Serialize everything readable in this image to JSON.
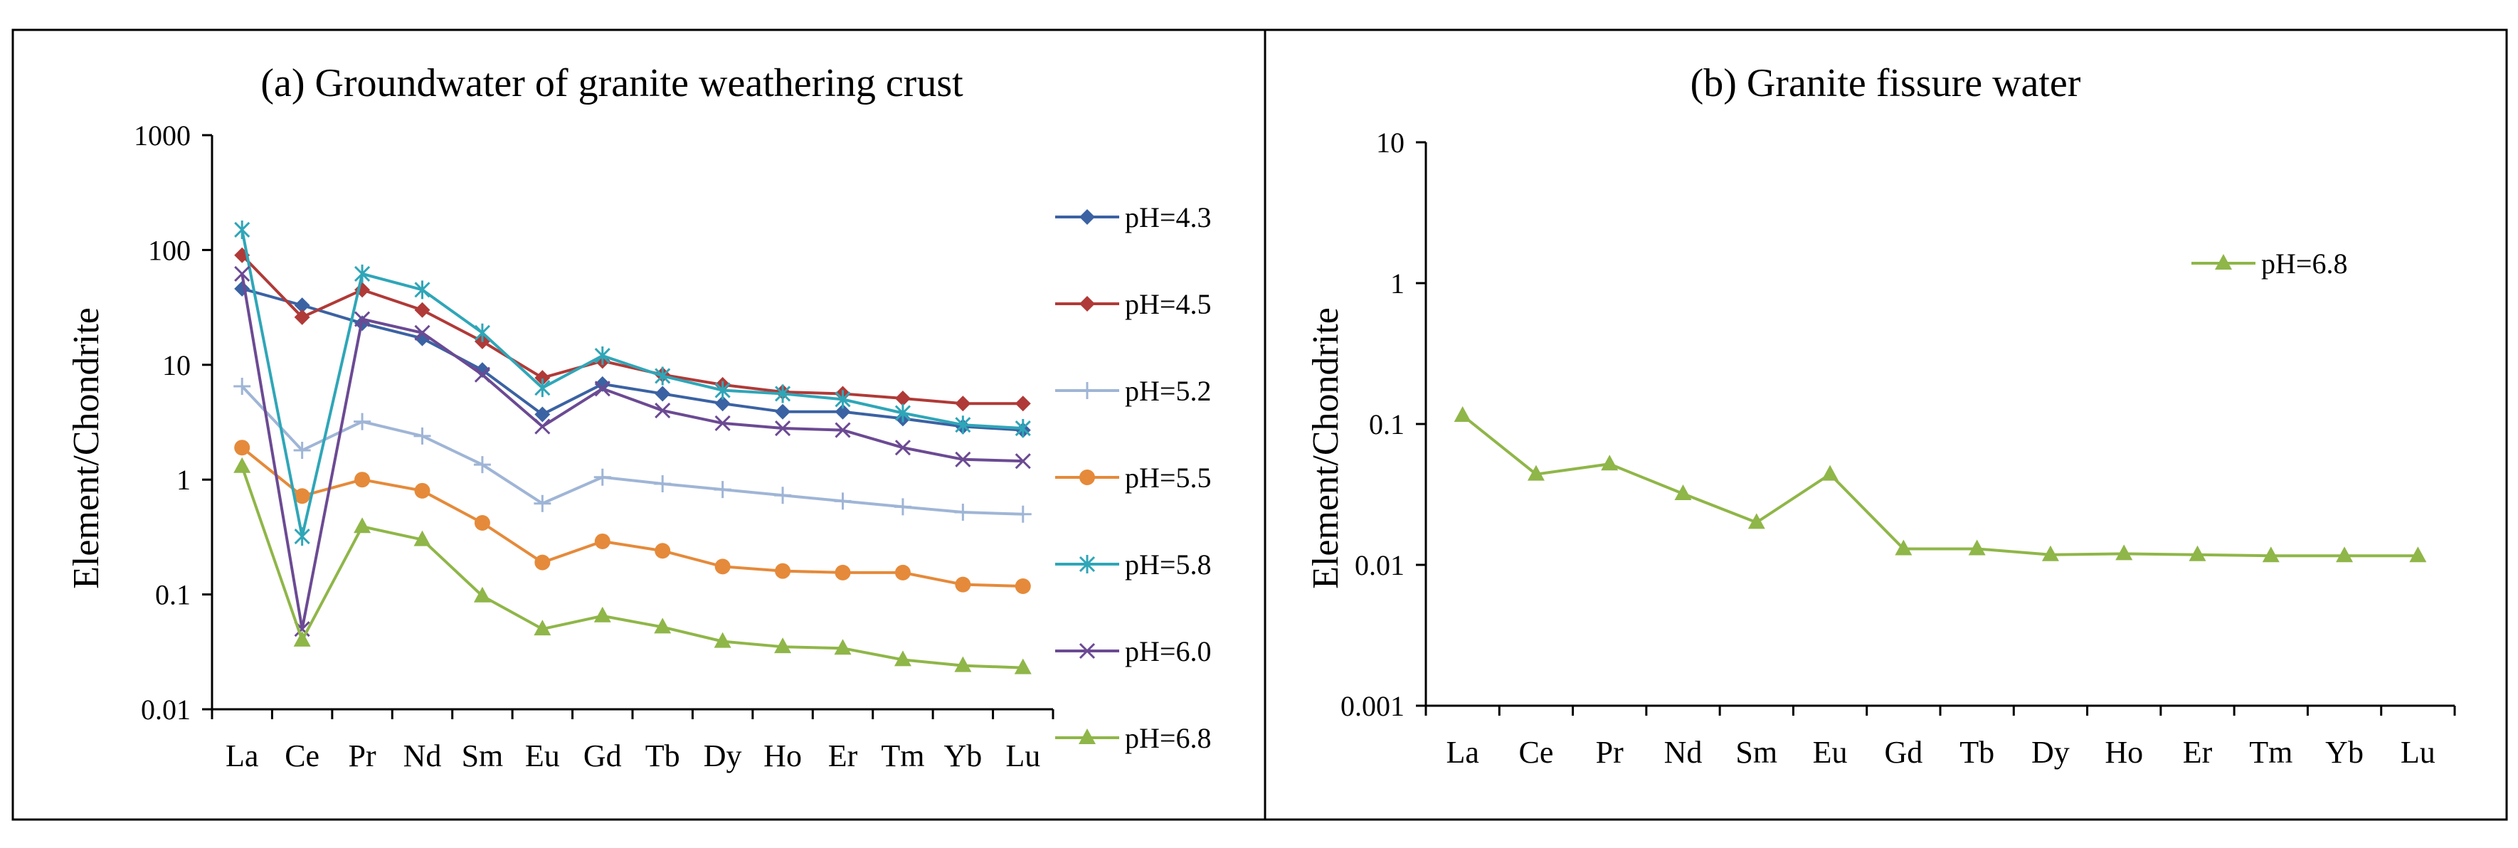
{
  "chart_data": [
    {
      "type": "line",
      "title": "(a) Groundwater of granite weathering crust",
      "xlabel": "",
      "ylabel": "Element/Chondrite",
      "yscale": "log",
      "ylim": [
        0.01,
        1000
      ],
      "yticks": [
        "0.01",
        "0.1",
        "1",
        "10",
        "100",
        "1000"
      ],
      "categories": [
        "La",
        "Ce",
        "Pr",
        "Nd",
        "Sm",
        "Eu",
        "Gd",
        "Tb",
        "Dy",
        "Ho",
        "Er",
        "Tm",
        "Yb",
        "Lu"
      ],
      "grid": false,
      "legend": "right",
      "series": [
        {
          "name": "pH=4.3",
          "color": "#3b62a3",
          "marker": "diamond",
          "values": [
            46,
            33,
            23,
            17,
            9,
            3.7,
            6.8,
            5.6,
            4.6,
            3.9,
            3.9,
            3.4,
            2.9,
            2.7
          ]
        },
        {
          "name": "pH=4.5",
          "color": "#b03a37",
          "marker": "diamond",
          "values": [
            90,
            26,
            45,
            30,
            16,
            7.7,
            10.8,
            8.2,
            6.7,
            5.8,
            5.6,
            5.1,
            4.6,
            4.6
          ]
        },
        {
          "name": "pH=5.2",
          "color": "#9fb5d6",
          "marker": "plus",
          "values": [
            6.5,
            1.8,
            3.2,
            2.4,
            1.35,
            0.62,
            1.05,
            0.92,
            0.82,
            0.73,
            0.65,
            0.58,
            0.52,
            0.5
          ]
        },
        {
          "name": "pH=5.5",
          "color": "#e58a3a",
          "marker": "circle",
          "values": [
            1.9,
            0.72,
            1.0,
            0.8,
            0.42,
            0.19,
            0.29,
            0.24,
            0.175,
            0.16,
            0.155,
            0.155,
            0.122,
            0.118
          ]
        },
        {
          "name": "pH=5.8",
          "color": "#2fa6b8",
          "marker": "star",
          "values": [
            150,
            0.32,
            62,
            45,
            19,
            6.3,
            12,
            8,
            6,
            5.6,
            5,
            3.8,
            3,
            2.8
          ]
        },
        {
          "name": "pH=6.0",
          "color": "#6b4a93",
          "marker": "x",
          "values": [
            62,
            0.05,
            25,
            19,
            8.2,
            2.9,
            6.2,
            4,
            3.1,
            2.8,
            2.7,
            1.9,
            1.5,
            1.45
          ]
        },
        {
          "name": "pH=6.8",
          "color": "#8fb648",
          "marker": "triangle",
          "values": [
            1.3,
            0.04,
            0.39,
            0.3,
            0.097,
            0.05,
            0.065,
            0.052,
            0.039,
            0.035,
            0.034,
            0.027,
            0.024,
            0.023
          ]
        }
      ]
    },
    {
      "type": "line",
      "title": "(b) Granite fissure water",
      "xlabel": "",
      "ylabel": "Element/Chondrite",
      "yscale": "log",
      "ylim": [
        0.001,
        10
      ],
      "yticks": [
        "0.001",
        "0.01",
        "0.1",
        "1",
        "10"
      ],
      "categories": [
        "La",
        "Ce",
        "Pr",
        "Nd",
        "Sm",
        "Eu",
        "Gd",
        "Tb",
        "Dy",
        "Ho",
        "Er",
        "Tm",
        "Yb",
        "Lu"
      ],
      "grid": false,
      "legend": "top-right",
      "series": [
        {
          "name": "pH=6.8",
          "color": "#8fb648",
          "marker": "triangle",
          "values": [
            0.115,
            0.044,
            0.052,
            0.032,
            0.02,
            0.044,
            0.013,
            0.013,
            0.0118,
            0.012,
            0.0118,
            0.0116,
            0.0116,
            0.0116
          ]
        }
      ]
    }
  ]
}
